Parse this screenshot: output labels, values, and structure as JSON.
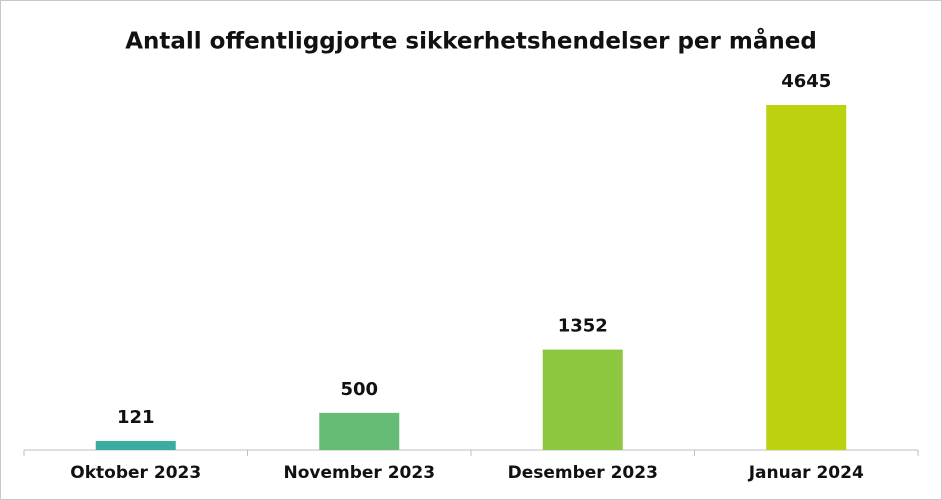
{
  "chart_data": {
    "type": "bar",
    "title": "Antall offentliggjorte sikkerhetshendelser per måned",
    "categories": [
      "Oktober 2023",
      "November 2023",
      "Desember 2023",
      "Januar 2024"
    ],
    "values": [
      121,
      500,
      1352,
      4645
    ],
    "colors": [
      "#3aada0",
      "#66bb77",
      "#8dc63f",
      "#bcd20f"
    ]
  }
}
